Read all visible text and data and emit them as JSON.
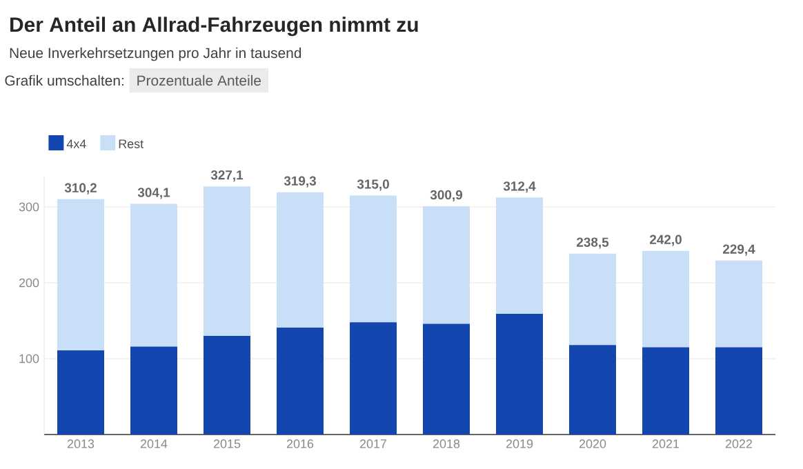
{
  "chart_data": {
    "type": "bar",
    "stacked": true,
    "title": "Der Anteil an Allrad-Fahrzeugen nimmt zu",
    "subtitle": "Neue Inverkehrsetzungen pro Jahr in tausend",
    "annotations": [
      "Grafik umschalten:",
      "Prozentuale Anteile"
    ],
    "categories": [
      "2013",
      "2014",
      "2015",
      "2016",
      "2017",
      "2018",
      "2019",
      "2020",
      "2021",
      "2022"
    ],
    "series": [
      {
        "name": "4x4",
        "color": "#1446b0",
        "values": [
          111,
          116,
          130,
          141,
          148,
          146,
          159,
          118,
          115,
          115
        ]
      },
      {
        "name": "Rest",
        "color": "#c9dff8",
        "values": [
          199.2,
          188.1,
          197.1,
          178.3,
          167.0,
          154.9,
          153.4,
          120.5,
          127.0,
          114.4
        ]
      }
    ],
    "totals": [
      "310,2",
      "304,1",
      "327,1",
      "319,3",
      "315,0",
      "300,9",
      "312,4",
      "238,5",
      "242,0",
      "229,4"
    ],
    "ylim": [
      0,
      340
    ],
    "yticks": [
      100,
      200,
      300
    ],
    "grid": "y",
    "legend": "top left"
  }
}
